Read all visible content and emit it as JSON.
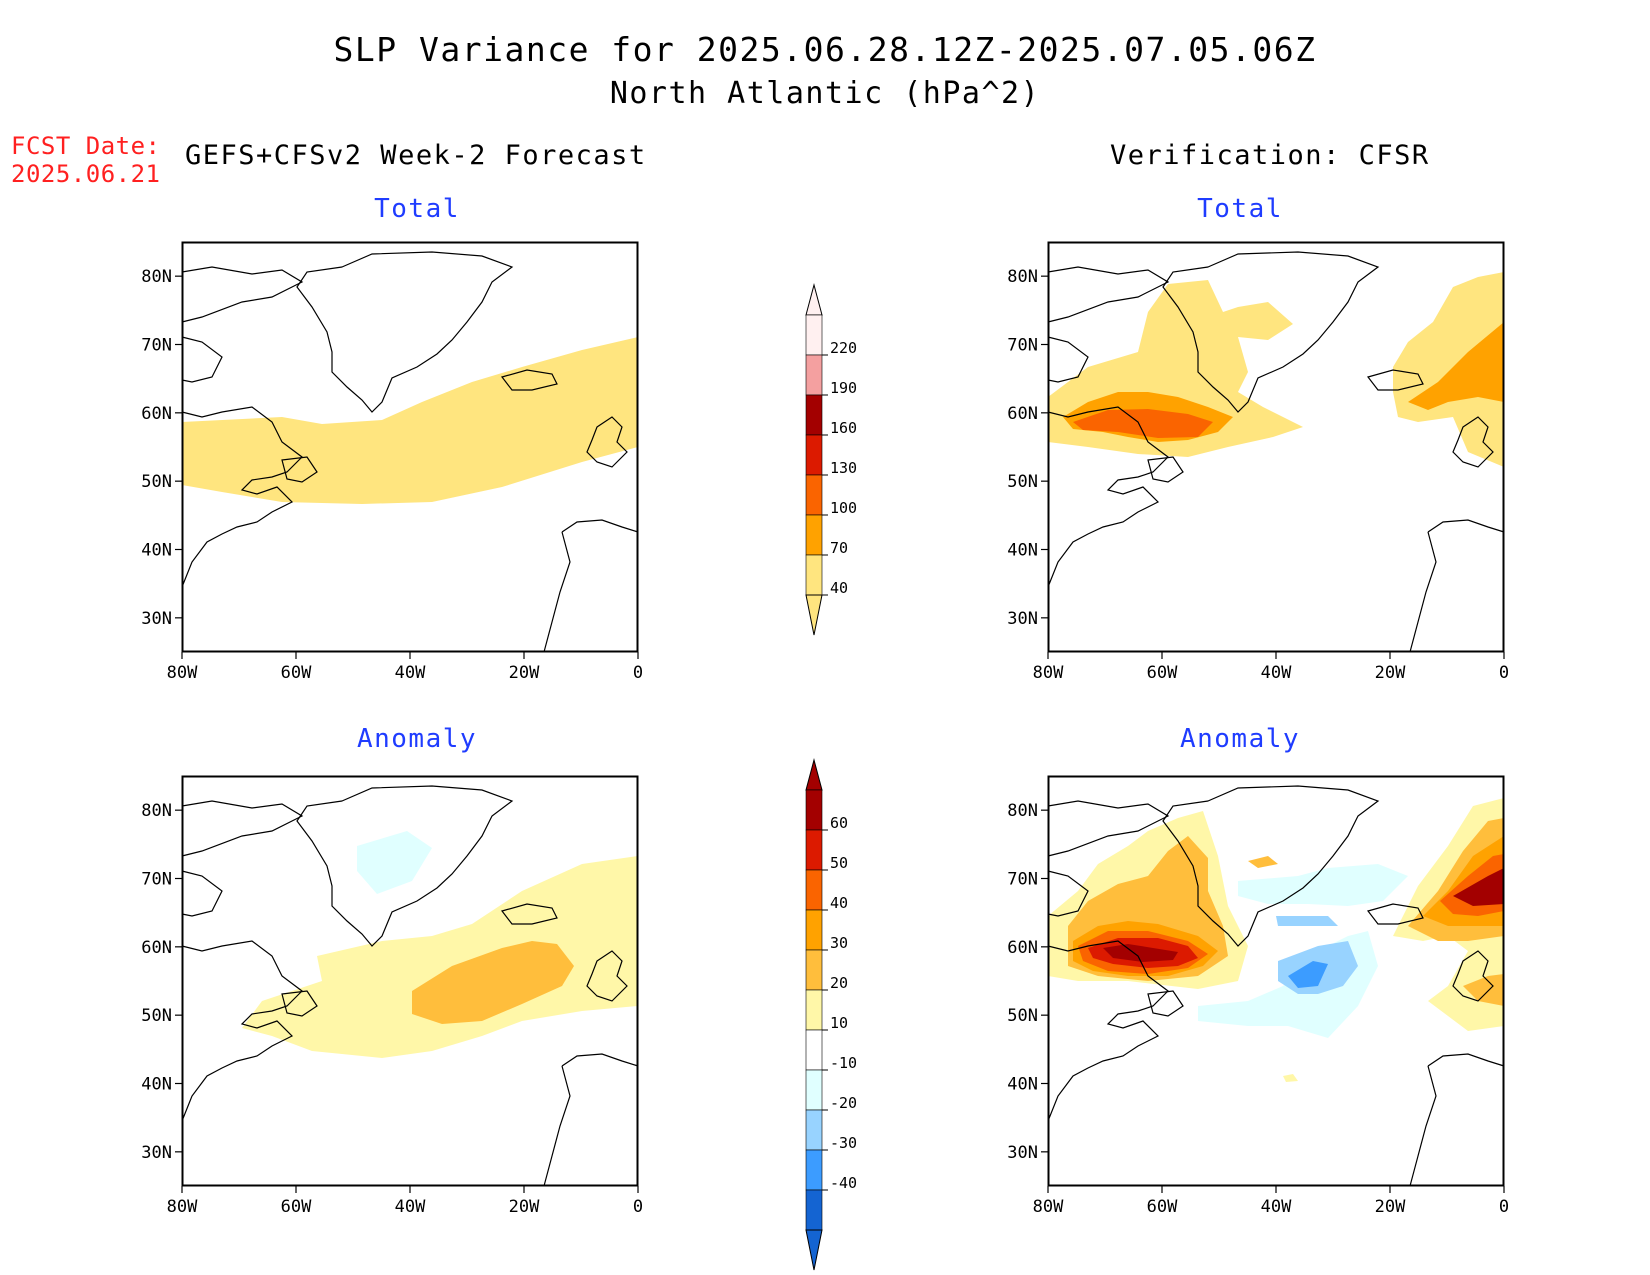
{
  "header": {
    "title_line1": "SLP Variance for 2025.06.28.12Z-2025.07.05.06Z",
    "title_line2": "North Atlantic (hPa^2)",
    "fcst_label": "FCST Date:",
    "fcst_date": "2025.06.21"
  },
  "columns": {
    "left": "GEFS+CFSv2 Week-2 Forecast",
    "right": "Verification: CFSR"
  },
  "panels": {
    "total_title": "Total",
    "anomaly_title": "Anomaly"
  },
  "map_axes": {
    "lon_labels": [
      "80W",
      "60W",
      "40W",
      "20W",
      "0"
    ],
    "lat_labels": [
      "30N",
      "40N",
      "50N",
      "60N",
      "70N",
      "80N"
    ],
    "lon_range": [
      -80,
      0
    ],
    "lat_range": [
      25,
      85
    ]
  },
  "legend_total": {
    "levels": [
      "220",
      "190",
      "160",
      "130",
      "100",
      "70",
      "40"
    ],
    "colors": [
      "#fff0f0",
      "#f4a0a0",
      "#a30000",
      "#dc1a00",
      "#fa6400",
      "#ffa200",
      "#ffe57f"
    ]
  },
  "legend_anomaly": {
    "levels": [
      "60",
      "50",
      "40",
      "30",
      "20",
      "10",
      "-10",
      "-20",
      "-30",
      "-40"
    ],
    "colors": [
      "#a30000",
      "#dc1a00",
      "#fa6400",
      "#ffa200",
      "#ffbe3c",
      "#fff7a8",
      "#ffffff",
      "#e0ffff",
      "#98d3ff",
      "#3c9cff",
      "#1464d2"
    ]
  }
}
